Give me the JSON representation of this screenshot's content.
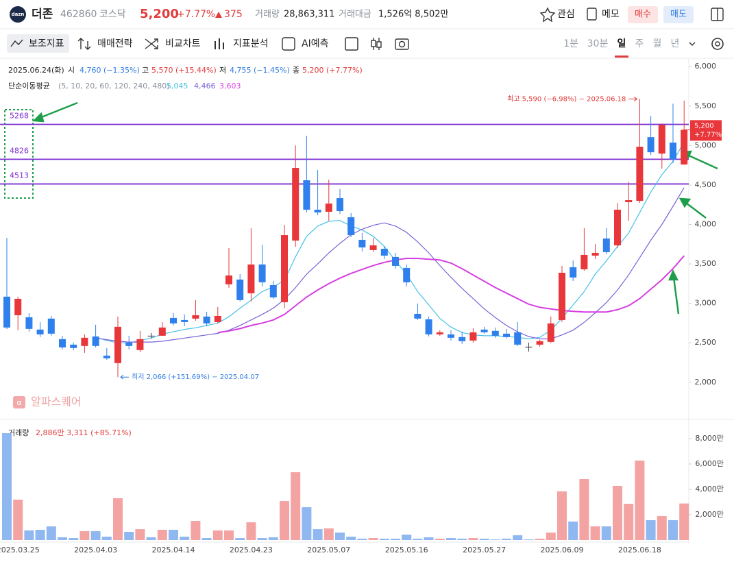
{
  "header": {
    "logo": "dazn",
    "name": "더존",
    "code": "462860",
    "market": "코스닥",
    "price": "5,200",
    "change_rate": "+7.77%",
    "change": "375",
    "volume_label": "거래량",
    "volume": "28,863,311",
    "amount_label": "거래대금",
    "amount": "1,526억 8,502만",
    "favorite": "관심",
    "memo": "메모",
    "buy": "매수",
    "sell": "매도"
  },
  "toolbar": {
    "indicators": "보조지표",
    "strategy": "매매전략",
    "compare": "비교차트",
    "analysis": "지표분석",
    "ai": "AI예측",
    "periods": [
      "1분",
      "30분",
      "일",
      "주",
      "월",
      "년"
    ]
  },
  "info": {
    "date": "2025.06.24(화)",
    "open_label": "시",
    "open": "4,760 (−1.35%)",
    "high_label": "고",
    "high": "5,570 (+15.44%)",
    "low_label": "저",
    "low": "4,755 (−1.45%)",
    "close_label": "종",
    "close": "5,200 (+7.77%)",
    "ma_label": "단순이동평균",
    "ma_periods": "(5, 10, 20, 60, 120, 240, 480)"
  },
  "watermark": "알파스퀘어",
  "chart_data": {
    "type": "candlestick",
    "categories": [
      null,
      "2025.03.25",
      null,
      null,
      null,
      null,
      null,
      null,
      "2025.04.03",
      null,
      null,
      null,
      null,
      null,
      null,
      "2025.04.14",
      null,
      null,
      null,
      null,
      null,
      null,
      "2025.04.23",
      null,
      null,
      null,
      null,
      null,
      null,
      "2025.05.07",
      null,
      null,
      null,
      null,
      null,
      null,
      "2025.05.16",
      null,
      null,
      null,
      null,
      null,
      null,
      "2025.05.27",
      null,
      null,
      null,
      null,
      null,
      null,
      "2025.06.09",
      null,
      null,
      null,
      null,
      null,
      null,
      "2025.06.18",
      null,
      null,
      null,
      null
    ],
    "open": [
      3085,
      2850,
      2824,
      2668,
      2807,
      2547,
      2477,
      2460,
      2581,
      2338,
      2243,
      2503,
      2408,
      2590,
      2590,
      2815,
      2789,
      2807,
      2833,
      2763,
      3241,
      3302,
      3128,
      3493,
      3232,
      3015,
      3796,
      4560,
      4187,
      4161,
      4334,
      4091,
      3805,
      3675,
      3692,
      3588,
      3449,
      2867,
      2798,
      2607,
      2607,
      2573,
      2529,
      2668,
      2651,
      2616,
      2633,
      2451,
      2477,
      2512,
      2789,
      3458,
      3432,
      3605,
      3822,
      3735,
      4282,
      4299,
      5106,
      4898,
      5037,
      4760
    ],
    "high": [
      3830,
      3085,
      2876,
      2763,
      2841,
      2590,
      2503,
      2607,
      2729,
      2434,
      2833,
      2590,
      2651,
      2625,
      2763,
      2876,
      2859,
      3041,
      2894,
      2954,
      3701,
      3371,
      3952,
      3744,
      3284,
      3996,
      5002,
      5124,
      4690,
      4568,
      4447,
      4143,
      3892,
      3831,
      3727,
      3640,
      3492,
      2998,
      2833,
      2659,
      2659,
      2642,
      2685,
      2703,
      2694,
      2677,
      2763,
      2503,
      2538,
      2833,
      3475,
      3545,
      3952,
      3753,
      3952,
      4273,
      4542,
      5590,
      5375,
      5280,
      5531,
      5570
    ],
    "low": [
      2676,
      2660,
      2642,
      2573,
      2590,
      2416,
      2408,
      2373,
      2442,
      2286,
      2066,
      2416,
      2382,
      2555,
      2590,
      2720,
      2711,
      2781,
      2711,
      2746,
      3198,
      3024,
      3024,
      3215,
      3058,
      2937,
      3718,
      4152,
      4117,
      4048,
      4134,
      3839,
      3657,
      3649,
      3562,
      3440,
      3215,
      2789,
      2581,
      2590,
      2529,
      2486,
      2503,
      2616,
      2564,
      2555,
      2460,
      2390,
      2451,
      2495,
      2763,
      3284,
      3414,
      3562,
      3623,
      3701,
      4048,
      4273,
      4881,
      4707,
      4777,
      4755
    ],
    "close": [
      2694,
      3058,
      2677,
      2607,
      2616,
      2442,
      2434,
      2564,
      2460,
      2304,
      2703,
      2460,
      2547,
      2590,
      2694,
      2746,
      2763,
      2850,
      2746,
      2841,
      3354,
      3041,
      3493,
      3267,
      3076,
      3865,
      4716,
      4187,
      4152,
      4265,
      4169,
      3865,
      3709,
      3735,
      3605,
      3475,
      3267,
      2807,
      2607,
      2633,
      2564,
      2521,
      2633,
      2633,
      2590,
      2573,
      2477,
      2451,
      2521,
      2746,
      3388,
      3328,
      3614,
      3640,
      3649,
      4187,
      4308,
      4985,
      4915,
      5262,
      4825,
      5200
    ],
    "up_color": "#e8363a",
    "down_color": "#2f80ed",
    "flat_color": "#333333",
    "ma": [
      {
        "value_label": "5,045",
        "color": "#45c1e8",
        "values": [
          null,
          null,
          null,
          null,
          null,
          null,
          null,
          null,
          2570,
          2530,
          2500,
          2500,
          2530,
          2560,
          2610,
          2640,
          2670,
          2690,
          2720,
          2750,
          2830,
          2940,
          3040,
          3150,
          3210,
          3290,
          3590,
          3850,
          3980,
          4040,
          4050,
          3980,
          3930,
          3850,
          3720,
          3540,
          3370,
          3150,
          2980,
          2810,
          2700,
          2630,
          2600,
          2590,
          2590,
          2580,
          2570,
          2550,
          2570,
          2660,
          2810,
          2980,
          3150,
          3370,
          3540,
          3720,
          3890,
          4150,
          4410,
          4630,
          4800,
          5045
        ]
      },
      {
        "value_label": "4,466",
        "color": "#7b61d8",
        "values": [
          null,
          null,
          null,
          null,
          null,
          null,
          null,
          null,
          2560,
          2540,
          2520,
          2510,
          2510,
          2510,
          2520,
          2540,
          2560,
          2580,
          2600,
          2620,
          2660,
          2720,
          2790,
          2860,
          2940,
          3050,
          3200,
          3370,
          3500,
          3640,
          3760,
          3870,
          3940,
          3990,
          4020,
          3980,
          3900,
          3780,
          3640,
          3480,
          3330,
          3190,
          3060,
          2930,
          2820,
          2720,
          2640,
          2580,
          2550,
          2550,
          2600,
          2660,
          2760,
          2880,
          3010,
          3170,
          3360,
          3580,
          3800,
          4000,
          4230,
          4466
        ]
      },
      {
        "value_label": "3,603",
        "color": "#d63ee0",
        "values": [
          null,
          null,
          null,
          null,
          null,
          null,
          null,
          null,
          null,
          null,
          null,
          null,
          null,
          null,
          null,
          null,
          null,
          null,
          null,
          2630,
          2650,
          2680,
          2720,
          2750,
          2790,
          2860,
          2970,
          3080,
          3170,
          3250,
          3320,
          3380,
          3430,
          3480,
          3520,
          3550,
          3570,
          3570,
          3560,
          3550,
          3510,
          3440,
          3360,
          3280,
          3200,
          3130,
          3060,
          2990,
          2950,
          2930,
          2910,
          2900,
          2890,
          2890,
          2890,
          2920,
          2970,
          3060,
          3180,
          3300,
          3440,
          3603
        ]
      }
    ],
    "levels": [
      5268,
      4826,
      4513
    ],
    "level_color": "#7d2fd0",
    "last_label": "5,200",
    "last_change": "+7.77%",
    "annotation_max": "최고 5,590 (−6.98%) − 2025.06.18",
    "annotation_min": "최저 2,066 (+151.69%) − 2025.04.07",
    "ylim": [
      1590,
      6080
    ],
    "yticks": [
      {
        "value": 6000,
        "label": "6,000"
      },
      {
        "value": 5500,
        "label": "5,500"
      },
      {
        "value": 5000,
        "label": "5,000"
      },
      {
        "value": 4500,
        "label": "4,500"
      },
      {
        "value": 4000,
        "label": "4,000"
      },
      {
        "value": 3500,
        "label": "3,500"
      },
      {
        "value": 3000,
        "label": "3,000"
      },
      {
        "value": 2500,
        "label": "2,500"
      },
      {
        "value": 2000,
        "label": "2,000"
      }
    ],
    "volume_title": "거래량",
    "volume_info": "2,886만 3,311 (+85.71%)",
    "volume": [
      8430,
      3190,
      760,
      810,
      1080,
      220,
      160,
      700,
      700,
      270,
      3300,
      650,
      860,
      220,
      810,
      810,
      270,
      1510,
      160,
      760,
      760,
      160,
      1400,
      160,
      220,
      3080,
      5350,
      2590,
      860,
      920,
      590,
      270,
      110,
      160,
      110,
      110,
      430,
      110,
      220,
      110,
      160,
      110,
      160,
      110,
      50,
      110,
      380,
      50,
      110,
      590,
      3840,
      1460,
      4810,
      1080,
      1080,
      4270,
      2860,
      6270,
      1570,
      1890,
      1570,
      2886
    ],
    "volume_up_color": "#f4a3a3",
    "volume_down_color": "#8fb7f0",
    "vlim": [
      0,
      8810
    ],
    "vticks": [
      {
        "value": 8000,
        "label": "8,000만"
      },
      {
        "value": 6000,
        "label": "6,000만"
      },
      {
        "value": 4000,
        "label": "4,000만"
      },
      {
        "value": 2000,
        "label": "2,000만"
      }
    ]
  }
}
